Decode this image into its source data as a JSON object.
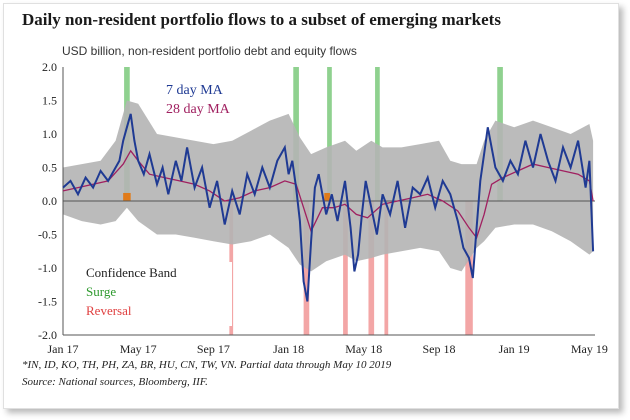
{
  "title": "Daily non-resident portfolio flows to a subset of emerging markets",
  "subtitle": "USD billion, non-resident portfolio debt and equity flows",
  "footnote1": "*IN, ID, KO, TH, PH, ZA, BR, HU, CN, TW, VN. Partial data through May 10 2019",
  "footnote2": "Source: National sources, Bloomberg, IIF.",
  "colors": {
    "ma7": "#1f3a93",
    "ma28": "#a02060",
    "band": "#b4b4b4",
    "surge": "#8fd18f",
    "reversal": "#f3a6a6",
    "orange": "#e07b1a"
  },
  "chart_data": {
    "type": "line",
    "title": "Daily non-resident portfolio flows to a subset of emerging markets",
    "ylabel": "USD billion",
    "ylim": [
      -2.0,
      2.0
    ],
    "yticks": [
      "2.0",
      "1.5",
      "1.0",
      "0.5",
      "0.0",
      "-0.5",
      "-1.0",
      "-1.5",
      "-2.0"
    ],
    "ytick_values": [
      2.0,
      1.5,
      1.0,
      0.5,
      0.0,
      -0.5,
      -1.0,
      -1.5,
      -2.0
    ],
    "xlim": [
      0,
      28.3
    ],
    "x_unit": "months since Jan 2017",
    "xticks": [
      "Jan 17",
      "May 17",
      "Sep 17",
      "Jan 18",
      "May 18",
      "Sep 18",
      "Jan 19",
      "May 19"
    ],
    "xtick_values": [
      0,
      4,
      8,
      12,
      16,
      20,
      24,
      28
    ],
    "annotations": [
      "7 day MA",
      "28 day MA"
    ],
    "legend": [
      "Confidence Band",
      "Surge",
      "Reversal"
    ],
    "series": [
      {
        "name": "7 day MA",
        "x": [
          0,
          0.4,
          0.8,
          1.2,
          1.6,
          2.0,
          2.4,
          2.8,
          3.0,
          3.2,
          3.4,
          3.6,
          3.8,
          4.0,
          4.3,
          4.6,
          5.0,
          5.3,
          5.6,
          6.0,
          6.3,
          6.6,
          7.0,
          7.4,
          7.8,
          8.2,
          8.6,
          9.0,
          9.4,
          9.8,
          10.2,
          10.6,
          11.0,
          11.4,
          11.8,
          12.0,
          12.2,
          12.4,
          12.6,
          12.8,
          13.0,
          13.2,
          13.4,
          13.6,
          13.8,
          14.0,
          14.3,
          14.6,
          15.0,
          15.3,
          15.5,
          15.7,
          15.9,
          16.1,
          16.4,
          16.7,
          17.0,
          17.4,
          17.8,
          18.2,
          18.6,
          19.0,
          19.4,
          19.8,
          20.2,
          20.6,
          21.0,
          21.3,
          21.6,
          21.8,
          22.0,
          22.2,
          22.4,
          22.6,
          22.8,
          23.0,
          23.4,
          23.8,
          24.2,
          24.6,
          25.0,
          25.4,
          25.8,
          26.2,
          26.6,
          27.0,
          27.4,
          27.8,
          28.0,
          28.2
        ],
        "y": [
          0.2,
          0.3,
          0.1,
          0.35,
          0.2,
          0.45,
          0.3,
          0.5,
          0.6,
          0.9,
          1.1,
          1.3,
          0.9,
          0.6,
          0.4,
          0.7,
          0.25,
          0.5,
          0.1,
          0.6,
          0.3,
          0.8,
          0.2,
          0.5,
          -0.1,
          0.3,
          -0.35,
          0.15,
          -0.2,
          0.4,
          0.1,
          0.5,
          0.2,
          0.6,
          0.8,
          0.4,
          0.6,
          0.2,
          -0.3,
          -1.2,
          -1.5,
          -0.6,
          0.2,
          0.4,
          0.1,
          -0.2,
          0.1,
          -0.3,
          0.3,
          -0.4,
          -1.05,
          -0.8,
          -0.2,
          0.3,
          -0.1,
          -0.5,
          0.1,
          -0.2,
          0.3,
          -0.4,
          0.2,
          0.1,
          0.35,
          -0.1,
          0.3,
          0.1,
          -0.3,
          -0.7,
          -0.85,
          -1.15,
          -0.4,
          0.3,
          0.7,
          1.1,
          0.8,
          0.5,
          0.3,
          0.6,
          0.4,
          0.9,
          0.5,
          1.0,
          0.6,
          0.3,
          0.8,
          0.5,
          0.9,
          0.2,
          0.6,
          -0.75
        ]
      },
      {
        "name": "28 day MA",
        "x": [
          0,
          0.8,
          1.6,
          2.4,
          3.2,
          3.6,
          4.0,
          4.6,
          5.4,
          6.2,
          7.0,
          7.8,
          8.6,
          9.4,
          10.2,
          11.0,
          11.8,
          12.4,
          12.8,
          13.2,
          13.8,
          14.4,
          15.0,
          15.6,
          16.2,
          17.0,
          17.8,
          18.6,
          19.4,
          20.2,
          21.0,
          21.6,
          22.0,
          22.4,
          22.8,
          23.4,
          24.2,
          25.0,
          25.8,
          26.6,
          27.4,
          28.0,
          28.2
        ],
        "y": [
          0.15,
          0.2,
          0.25,
          0.3,
          0.55,
          0.75,
          0.6,
          0.4,
          0.35,
          0.3,
          0.25,
          0.15,
          0.0,
          0.05,
          0.15,
          0.2,
          0.3,
          0.25,
          -0.1,
          -0.45,
          -0.1,
          -0.1,
          -0.05,
          -0.2,
          -0.25,
          -0.05,
          0.0,
          0.05,
          0.1,
          0.0,
          -0.15,
          -0.4,
          -0.55,
          -0.2,
          0.25,
          0.35,
          0.45,
          0.55,
          0.5,
          0.45,
          0.4,
          0.3,
          0.0
        ]
      }
    ],
    "confidence_band": {
      "x": [
        0,
        1,
        2,
        2.8,
        3.4,
        4.0,
        5,
        6,
        7,
        8,
        9,
        10,
        11,
        12,
        12.6,
        13.2,
        14,
        15,
        15.6,
        16.4,
        17,
        18,
        19,
        20,
        20.6,
        21.2,
        22,
        22.4,
        23,
        24,
        25,
        26,
        27,
        28,
        28.2
      ],
      "upper": [
        0.5,
        0.55,
        0.6,
        0.9,
        1.5,
        1.45,
        1.0,
        0.95,
        0.9,
        0.85,
        0.9,
        1.05,
        1.2,
        1.3,
        0.95,
        0.7,
        0.8,
        0.9,
        0.75,
        0.9,
        0.8,
        0.8,
        0.85,
        0.9,
        0.6,
        0.55,
        0.55,
        0.9,
        1.2,
        1.1,
        1.2,
        1.1,
        1.0,
        1.15,
        0.9
      ],
      "lower": [
        -0.2,
        -0.3,
        -0.35,
        -0.3,
        -0.1,
        -0.3,
        -0.5,
        -0.5,
        -0.55,
        -0.6,
        -0.65,
        -0.6,
        -0.5,
        -0.7,
        -0.95,
        -1.05,
        -0.9,
        -0.8,
        -0.9,
        -0.85,
        -0.8,
        -0.75,
        -0.7,
        -0.75,
        -1.0,
        -1.05,
        -0.7,
        -0.6,
        -0.4,
        -0.35,
        -0.35,
        -0.45,
        -0.6,
        -0.8,
        -0.75
      ]
    },
    "surge_periods": [
      [
        3.25,
        3.55
      ],
      [
        12.25,
        12.55
      ],
      [
        14.05,
        14.3
      ],
      [
        16.6,
        16.85
      ],
      [
        23.1,
        23.4
      ]
    ],
    "reversal_periods": [
      [
        8.85,
        9.05
      ],
      [
        12.8,
        13.1
      ],
      [
        14.9,
        15.15
      ],
      [
        16.25,
        16.55
      ],
      [
        17.1,
        17.3
      ],
      [
        21.4,
        21.8
      ]
    ],
    "orange_fills": [
      [
        3.2,
        3.6
      ],
      [
        13.9,
        14.2
      ]
    ]
  }
}
